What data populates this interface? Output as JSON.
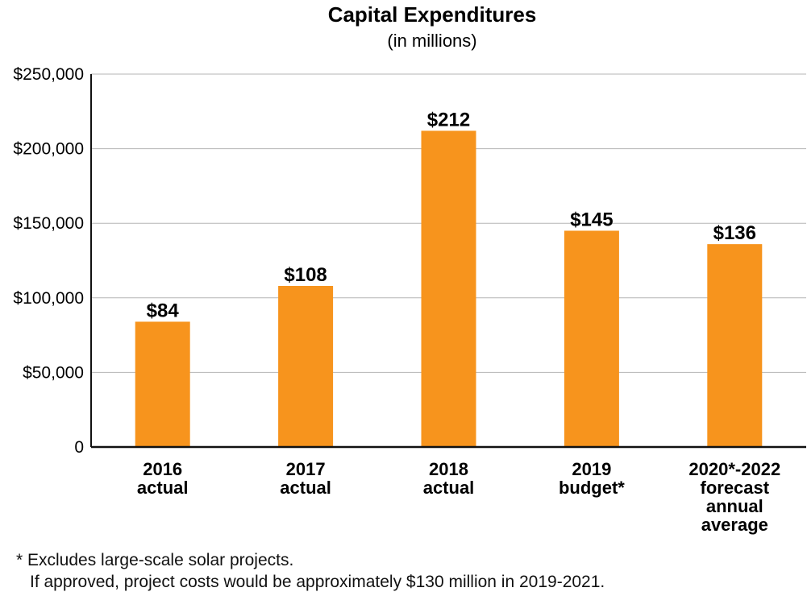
{
  "chart_data": {
    "type": "bar",
    "title": "Capital Expenditures",
    "subtitle": "(in millions)",
    "xlabel": "",
    "ylabel": "",
    "ylim": [
      0,
      250000
    ],
    "yticks": [
      0,
      50000,
      100000,
      150000,
      200000,
      250000
    ],
    "ytick_labels": [
      "0",
      "$50,000",
      "$100,000",
      "$150,000",
      "$200,000",
      "$250,000"
    ],
    "grid": true,
    "bar_color": "#F7941D",
    "categories": [
      [
        "2016",
        "actual"
      ],
      [
        "2017",
        "actual"
      ],
      [
        "2018",
        "actual"
      ],
      [
        "2019",
        "budget*"
      ],
      [
        "2020*-2022",
        "forecast",
        "annual",
        "average"
      ]
    ],
    "values": [
      84000,
      108000,
      212000,
      145000,
      136000
    ],
    "data_labels": [
      "$84",
      "$108",
      "$212",
      "$145",
      "$136"
    ]
  },
  "footnote": {
    "line1": "* Excludes large-scale solar projects.",
    "line2": "If approved, project costs would be approximately $130 million in 2019-2021."
  }
}
